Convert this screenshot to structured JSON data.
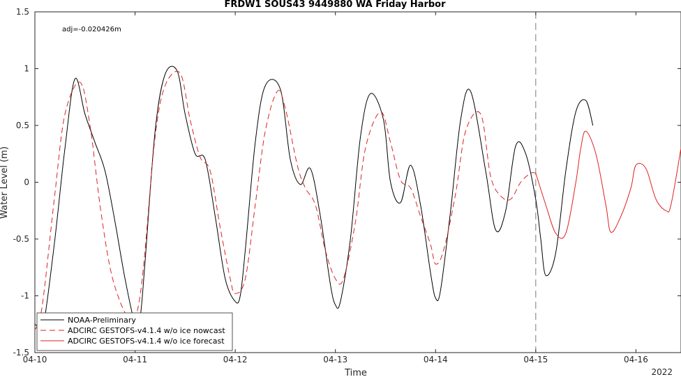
{
  "chart_data": {
    "type": "line",
    "title": "FRDW1 SOUS43 9449880 WA Friday Harbor",
    "xlabel": "Time",
    "ylabel": "Water Level (m)",
    "annotation": "adj=-0.020426m",
    "year_label": "2022",
    "xlim": [
      0,
      6.45
    ],
    "ylim": [
      -1.5,
      1.5
    ],
    "x_ticks": [
      {
        "value": 0,
        "label": "04-10"
      },
      {
        "value": 1,
        "label": "04-11"
      },
      {
        "value": 2,
        "label": "04-12"
      },
      {
        "value": 3,
        "label": "04-13"
      },
      {
        "value": 4,
        "label": "04-14"
      },
      {
        "value": 5,
        "label": "04-15"
      },
      {
        "value": 6,
        "label": "04-16"
      }
    ],
    "y_ticks": [
      {
        "value": 1.5,
        "label": "1.5"
      },
      {
        "value": 1,
        "label": "1"
      },
      {
        "value": 0.5,
        "label": "0.5"
      },
      {
        "value": 0,
        "label": "0"
      },
      {
        "value": -0.5,
        "label": "-0.5"
      },
      {
        "value": -1,
        "label": "-1"
      },
      {
        "value": -1.5,
        "label": "-1.5"
      }
    ],
    "vline": {
      "x": 5.0,
      "style": "dashed",
      "color": "#777777"
    },
    "grid": false,
    "legend_position": "bottom-left",
    "series": [
      {
        "name": "NOAA-Preliminary",
        "color": "#000000",
        "style": "solid",
        "x": [
          0,
          0.05,
          0.1,
          0.2,
          0.3,
          0.4,
          0.5,
          0.6,
          0.7,
          0.8,
          0.9,
          1.0,
          1.05,
          1.1,
          1.2,
          1.3,
          1.42,
          1.5,
          1.6,
          1.7,
          1.8,
          1.9,
          2.0,
          2.05,
          2.1,
          2.2,
          2.3,
          2.45,
          2.55,
          2.65,
          2.75,
          2.85,
          2.95,
          3.0,
          3.05,
          3.15,
          3.25,
          3.35,
          3.48,
          3.55,
          3.65,
          3.75,
          3.85,
          3.95,
          4.0,
          4.05,
          4.15,
          4.25,
          4.35,
          4.5,
          4.6,
          4.7,
          4.8,
          4.9,
          5.0,
          5.05,
          5.1,
          5.2,
          5.3,
          5.4,
          5.5,
          5.57
        ],
        "y": [
          -1.25,
          -1.27,
          -1.18,
          -0.5,
          0.3,
          0.91,
          0.6,
          0.35,
          0.1,
          -0.35,
          -0.85,
          -1.25,
          -1.2,
          -0.7,
          0.45,
          0.95,
          0.98,
          0.6,
          0.25,
          0.2,
          -0.3,
          -0.85,
          -1.05,
          -1.0,
          -0.6,
          0.35,
          0.85,
          0.82,
          0.2,
          -0.02,
          0.12,
          -0.3,
          -0.9,
          -1.08,
          -1.05,
          -0.5,
          0.4,
          0.78,
          0.55,
          0.0,
          -0.18,
          0.15,
          -0.2,
          -0.8,
          -1.02,
          -0.95,
          -0.25,
          0.55,
          0.8,
          0.1,
          -0.42,
          -0.25,
          0.32,
          0.25,
          -0.15,
          -0.5,
          -0.82,
          -0.62,
          0.1,
          0.62,
          0.72,
          0.5
        ]
      },
      {
        "name": "ADCIRC GESTOFS-v4.1.4 w/o ice nowcast",
        "color": "#dd2222",
        "style": "dashed",
        "x": [
          0,
          0.05,
          0.1,
          0.2,
          0.3,
          0.45,
          0.55,
          0.65,
          0.75,
          0.85,
          0.95,
          1.0,
          1.05,
          1.1,
          1.2,
          1.3,
          1.45,
          1.55,
          1.65,
          1.75,
          1.85,
          1.95,
          2.0,
          2.1,
          2.2,
          2.3,
          2.42,
          2.5,
          2.62,
          2.7,
          2.8,
          2.9,
          3.0,
          3.08,
          3.2,
          3.3,
          3.45,
          3.55,
          3.65,
          3.75,
          3.85,
          3.95,
          4.0,
          4.08,
          4.2,
          4.3,
          4.45,
          4.55,
          4.65,
          4.75,
          4.85,
          4.95,
          5.0
        ],
        "y": [
          -1.3,
          -1.2,
          -0.9,
          -0.1,
          0.6,
          0.88,
          0.5,
          -0.2,
          -0.75,
          -1.05,
          -1.22,
          -1.2,
          -1.0,
          -0.6,
          0.4,
          0.85,
          0.96,
          0.55,
          0.22,
          0.1,
          -0.4,
          -0.85,
          -0.98,
          -0.85,
          -0.2,
          0.45,
          0.8,
          0.65,
          0.15,
          -0.05,
          -0.2,
          -0.6,
          -0.85,
          -0.85,
          -0.35,
          0.3,
          0.62,
          0.35,
          0.02,
          -0.05,
          -0.3,
          -0.55,
          -0.72,
          -0.6,
          -0.1,
          0.45,
          0.6,
          0.05,
          -0.12,
          -0.15,
          0.0,
          0.08,
          0.08
        ]
      },
      {
        "name": "ADCIRC GESTOFS-v4.1.4 w/o ice forecast",
        "color": "#dd2222",
        "style": "solid",
        "x": [
          5.0,
          5.1,
          5.2,
          5.3,
          5.4,
          5.45,
          5.5,
          5.6,
          5.7,
          5.75,
          5.85,
          5.95,
          6.0,
          6.1,
          6.2,
          6.3,
          6.35,
          6.45
        ],
        "y": [
          0.08,
          -0.2,
          -0.45,
          -0.45,
          0.0,
          0.3,
          0.45,
          0.25,
          -0.2,
          -0.44,
          -0.3,
          -0.05,
          0.15,
          0.12,
          -0.15,
          -0.25,
          -0.2,
          0.3
        ]
      }
    ]
  }
}
